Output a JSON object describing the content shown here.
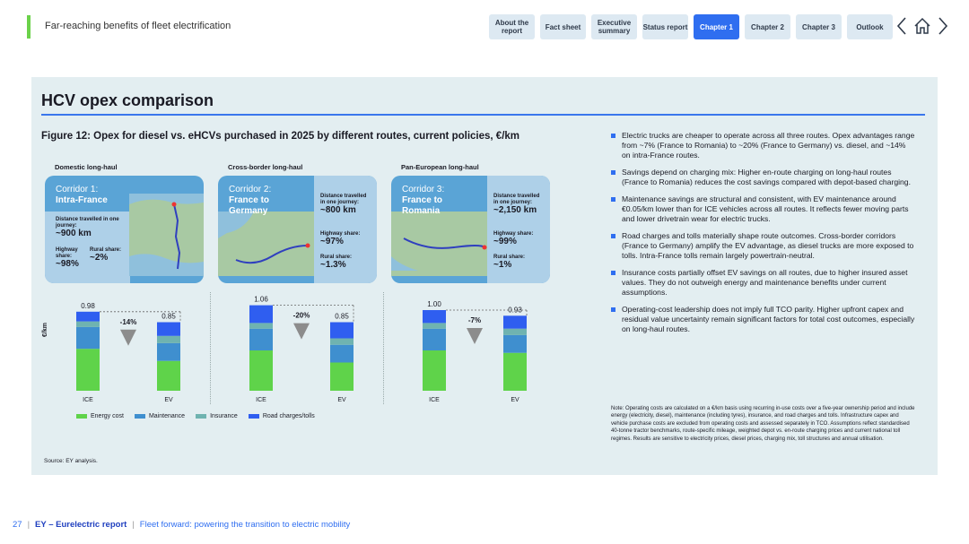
{
  "header": {
    "doc_title": "Far-reaching benefits of fleet electrification",
    "tabs": [
      {
        "label": "About the report",
        "active": false
      },
      {
        "label": "Fact sheet",
        "active": false
      },
      {
        "label": "Executive summary",
        "active": false
      },
      {
        "label": "Status report",
        "active": false
      },
      {
        "label": "Chapter 1",
        "active": true
      },
      {
        "label": "Chapter 2",
        "active": false
      },
      {
        "label": "Chapter 3",
        "active": false
      },
      {
        "label": "Outlook",
        "active": false
      }
    ],
    "icons": [
      "chevron-left-icon",
      "home-icon",
      "chevron-right-icon"
    ]
  },
  "panel": {
    "title": "HCV opex comparison",
    "figure_title": "Figure 12: Opex for diesel vs. eHCVs purchased in 2025 by different routes, current policies, €/km",
    "source": "Source: EY analysis."
  },
  "corridors": [
    {
      "heading": "Domestic long-haul",
      "name_line1": "Corridor 1:",
      "name_line2": "Intra-France",
      "distance_label": "Distance travelled in one journey:",
      "distance": "~900 km",
      "highway_label": "Highway share:",
      "highway": "~98%",
      "rural_label": "Rural share:",
      "rural": "~2%"
    },
    {
      "heading": "Cross-border long-haul",
      "name_line1": "Corridor 2:",
      "name_line2": "France to Germany",
      "distance_label": "Distance travelled in one journey:",
      "distance": "~800 km",
      "highway_label": "Highway share:",
      "highway": "~97%",
      "rural_label": "Rural share:",
      "rural": "~1.3%"
    },
    {
      "heading": "Pan-European long-haul",
      "name_line1": "Corridor 3:",
      "name_line2": "France to Romania",
      "distance_label": "Distance travelled in one journey:",
      "distance": "~2,150 km",
      "highway_label": "Highway share:",
      "highway": "~99%",
      "rural_label": "Rural share:",
      "rural": "~1%"
    }
  ],
  "chart_data": {
    "type": "bar",
    "stacked": true,
    "ylabel": "€/km",
    "categories": [
      "ICE",
      "EV"
    ],
    "series_names": [
      "Energy cost",
      "Maintenance",
      "Insurance",
      "Road charges/tolls"
    ],
    "colors": {
      "Energy cost": "#5fd34a",
      "Maintenance": "#3f8fcf",
      "Insurance": "#6fb3b0",
      "Road charges/tolls": "#2f5ef0"
    },
    "panels": [
      {
        "corridor": "Domestic long-haul",
        "totals": [
          0.98,
          0.85
        ],
        "total_labels": [
          "0.98",
          "0.85"
        ],
        "delta": "-14%",
        "stacks": {
          "Energy cost": [
            0.52,
            0.37
          ],
          "Maintenance": [
            0.27,
            0.22
          ],
          "Insurance": [
            0.07,
            0.09
          ],
          "Road charges/tolls": [
            0.12,
            0.17
          ]
        }
      },
      {
        "corridor": "Cross-border long-haul",
        "totals": [
          1.06,
          0.85
        ],
        "total_labels": [
          "1.06",
          "0.85"
        ],
        "delta": "-20%",
        "stacks": {
          "Energy cost": [
            0.5,
            0.35
          ],
          "Maintenance": [
            0.27,
            0.22
          ],
          "Insurance": [
            0.07,
            0.08
          ],
          "Road charges/tolls": [
            0.22,
            0.2
          ]
        }
      },
      {
        "corridor": "Pan-European long-haul",
        "totals": [
          1.0,
          0.93
        ],
        "total_labels": [
          "1.00",
          "0.93"
        ],
        "delta": "-7%",
        "stacks": {
          "Energy cost": [
            0.5,
            0.47
          ],
          "Maintenance": [
            0.27,
            0.22
          ],
          "Insurance": [
            0.07,
            0.08
          ],
          "Road charges/tolls": [
            0.16,
            0.16
          ]
        }
      }
    ]
  },
  "legend": {
    "items": [
      {
        "label": "Energy cost",
        "color": "#5fd34a"
      },
      {
        "label": "Maintenance",
        "color": "#3f8fcf"
      },
      {
        "label": "Insurance",
        "color": "#6fb3b0"
      },
      {
        "label": "Road charges/tolls",
        "color": "#2f5ef0"
      }
    ]
  },
  "bullets": [
    "Electric trucks are cheaper to operate across all three routes. Opex advantages range from ~7% (France to Romania) to ~20% (France to Germany) vs. diesel, and ~14% on intra-France routes.",
    "Savings depend on charging mix: Higher en-route charging on long-haul routes (France to Romania) reduces the cost savings compared with depot-based charging.",
    "Maintenance savings are structural and consistent, with EV maintenance around €0.05/km lower than for ICE vehicles across all routes. It reflects fewer moving parts and lower drivetrain wear for electric trucks.",
    "Road charges and tolls materially shape route outcomes. Cross-border corridors (France to Germany) amplify the EV advantage, as diesel trucks are more exposed to tolls. Intra-France tolls remain largely powertrain-neutral.",
    "Insurance costs partially offset EV savings on all routes, due to higher insured asset values. They do not outweigh energy and maintenance benefits under current assumptions.",
    "Operating-cost leadership does not imply full TCO parity. Higher upfront capex and residual value uncertainty remain significant factors for total cost outcomes, especially on long-haul routes."
  ],
  "note": "Note: Operating costs are calculated on a €/km basis using recurring in-use costs over a five-year ownership period and include energy (electricity, diesel), maintenance (including tyres), insurance, and road charges and tolls. Infrastructure capex and vehicle purchase costs are excluded from operating costs and assessed separately in TCO. Assumptions reflect standardised 40-tonne tractor benchmarks, route-specific mileage, weighted depot vs. en-route charging prices and current national toll regimes. Results are sensitive to electricity prices, diesel prices, charging mix, toll structures and annual utilisation.",
  "footer": {
    "page": "27",
    "report": "EY – Eurelectric report",
    "subtitle": "Fleet forward: powering the transition to electric mobility"
  }
}
